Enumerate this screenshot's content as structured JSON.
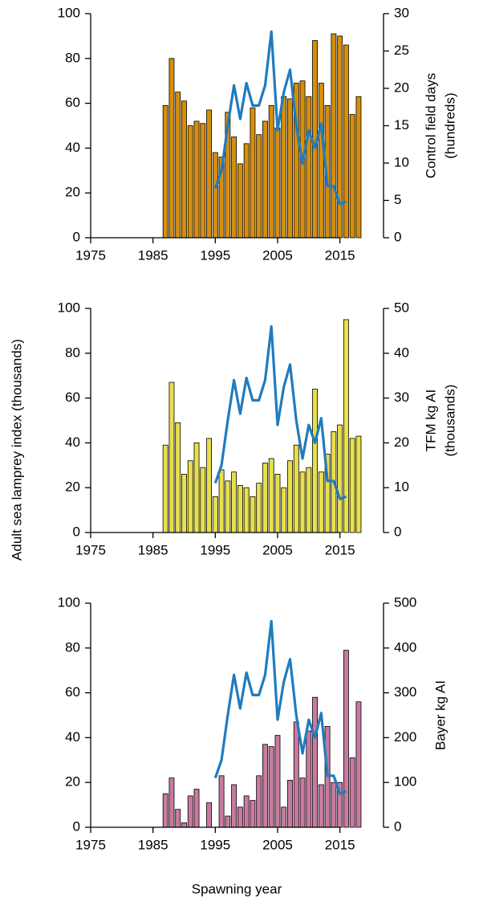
{
  "ylabel": "Adult sea lamprey index  (thousands)",
  "xlabel": "Spawning year",
  "chart_data": [
    {
      "type": "bar",
      "x": [
        1987,
        1988,
        1989,
        1990,
        1991,
        1992,
        1993,
        1994,
        1995,
        1996,
        1997,
        1998,
        1999,
        2000,
        2001,
        2002,
        2003,
        2004,
        2005,
        2006,
        2007,
        2008,
        2009,
        2010,
        2011,
        2012,
        2013,
        2014,
        2015,
        2016,
        2017,
        2018
      ],
      "y2label": [
        "Control field days",
        "(hundreds)"
      ],
      "xlim": [
        1975,
        2022
      ],
      "xticks": [
        1975,
        1985,
        1995,
        2005,
        2015
      ],
      "ylim": [
        0,
        100
      ],
      "yticks": [
        0,
        20,
        40,
        60,
        80,
        100
      ],
      "y2lim": [
        0,
        30
      ],
      "y2ticks": [
        0,
        5,
        10,
        15,
        20,
        25,
        30
      ],
      "series": [
        {
          "type": "bar",
          "axis": "y2",
          "color": "#d68f0c",
          "values": [
            17.7,
            24,
            19.5,
            18.3,
            15,
            15.6,
            15.3,
            17.1,
            11.4,
            10.8,
            16.8,
            13.5,
            9.9,
            12.6,
            17.4,
            13.8,
            15.6,
            17.7,
            14.7,
            18.9,
            18.6,
            20.7,
            21,
            18.9,
            26.4,
            20.7,
            17.7,
            27.3,
            27,
            25.8,
            16.5,
            18.9
          ]
        },
        {
          "type": "line",
          "color": "#1f7cbf",
          "values": [
            null,
            null,
            null,
            null,
            null,
            null,
            null,
            null,
            22,
            30,
            50,
            68,
            53,
            69,
            59,
            59,
            68,
            92,
            48,
            65,
            75,
            50,
            33,
            48,
            40,
            51,
            23,
            23,
            15,
            16,
            null,
            null
          ]
        }
      ]
    },
    {
      "type": "bar",
      "x": [
        1987,
        1988,
        1989,
        1990,
        1991,
        1992,
        1993,
        1994,
        1995,
        1996,
        1997,
        1998,
        1999,
        2000,
        2001,
        2002,
        2003,
        2004,
        2005,
        2006,
        2007,
        2008,
        2009,
        2010,
        2011,
        2012,
        2013,
        2014,
        2015,
        2016,
        2017,
        2018
      ],
      "y2label": [
        "TFM kg AI",
        "(thousands)"
      ],
      "xlim": [
        1975,
        2022
      ],
      "xticks": [
        1975,
        1985,
        1995,
        2005,
        2015
      ],
      "ylim": [
        0,
        100
      ],
      "yticks": [
        0,
        20,
        40,
        60,
        80,
        100
      ],
      "y2lim": [
        0,
        50
      ],
      "y2ticks": [
        0,
        10,
        20,
        30,
        40,
        50
      ],
      "series": [
        {
          "type": "bar",
          "axis": "y2",
          "color": "#e8e04c",
          "values": [
            19.5,
            33.5,
            24.5,
            13,
            16,
            20,
            14.5,
            21,
            8,
            14,
            11.5,
            13.5,
            10.5,
            10,
            8,
            11,
            15.5,
            16.5,
            13,
            10,
            16,
            19.5,
            13.5,
            14.5,
            32,
            13.5,
            17.5,
            22.5,
            24,
            47.5,
            21,
            21.5
          ]
        },
        {
          "type": "line",
          "color": "#1f7cbf",
          "values": [
            null,
            null,
            null,
            null,
            null,
            null,
            null,
            null,
            22,
            30,
            50,
            68,
            53,
            69,
            59,
            59,
            68,
            92,
            48,
            65,
            75,
            50,
            33,
            48,
            40,
            51,
            23,
            23,
            15,
            16,
            null,
            null
          ]
        }
      ]
    },
    {
      "type": "bar",
      "x": [
        1987,
        1988,
        1989,
        1990,
        1991,
        1992,
        1993,
        1994,
        1995,
        1996,
        1997,
        1998,
        1999,
        2000,
        2001,
        2002,
        2003,
        2004,
        2005,
        2006,
        2007,
        2008,
        2009,
        2010,
        2011,
        2012,
        2013,
        2014,
        2015,
        2016,
        2017,
        2018
      ],
      "y2label": [
        "Bayer kg AI"
      ],
      "xlim": [
        1975,
        2022
      ],
      "xticks": [
        1975,
        1985,
        1995,
        2005,
        2015
      ],
      "ylim": [
        0,
        100
      ],
      "yticks": [
        0,
        20,
        40,
        60,
        80,
        100
      ],
      "y2lim": [
        0,
        500
      ],
      "y2ticks": [
        0,
        100,
        200,
        300,
        400,
        500
      ],
      "series": [
        {
          "type": "bar",
          "axis": "y2",
          "color": "#c97aa0",
          "values": [
            75,
            110,
            40,
            10,
            70,
            85,
            null,
            55,
            null,
            115,
            25,
            95,
            45,
            70,
            60,
            115,
            185,
            180,
            205,
            45,
            105,
            235,
            110,
            215,
            290,
            95,
            225,
            100,
            100,
            395,
            155,
            280
          ]
        },
        {
          "type": "line",
          "color": "#1f7cbf",
          "values": [
            null,
            null,
            null,
            null,
            null,
            null,
            null,
            null,
            22,
            30,
            50,
            68,
            53,
            69,
            59,
            59,
            68,
            92,
            48,
            65,
            75,
            50,
            33,
            48,
            40,
            51,
            23,
            23,
            15,
            16,
            null,
            null
          ]
        }
      ]
    }
  ]
}
